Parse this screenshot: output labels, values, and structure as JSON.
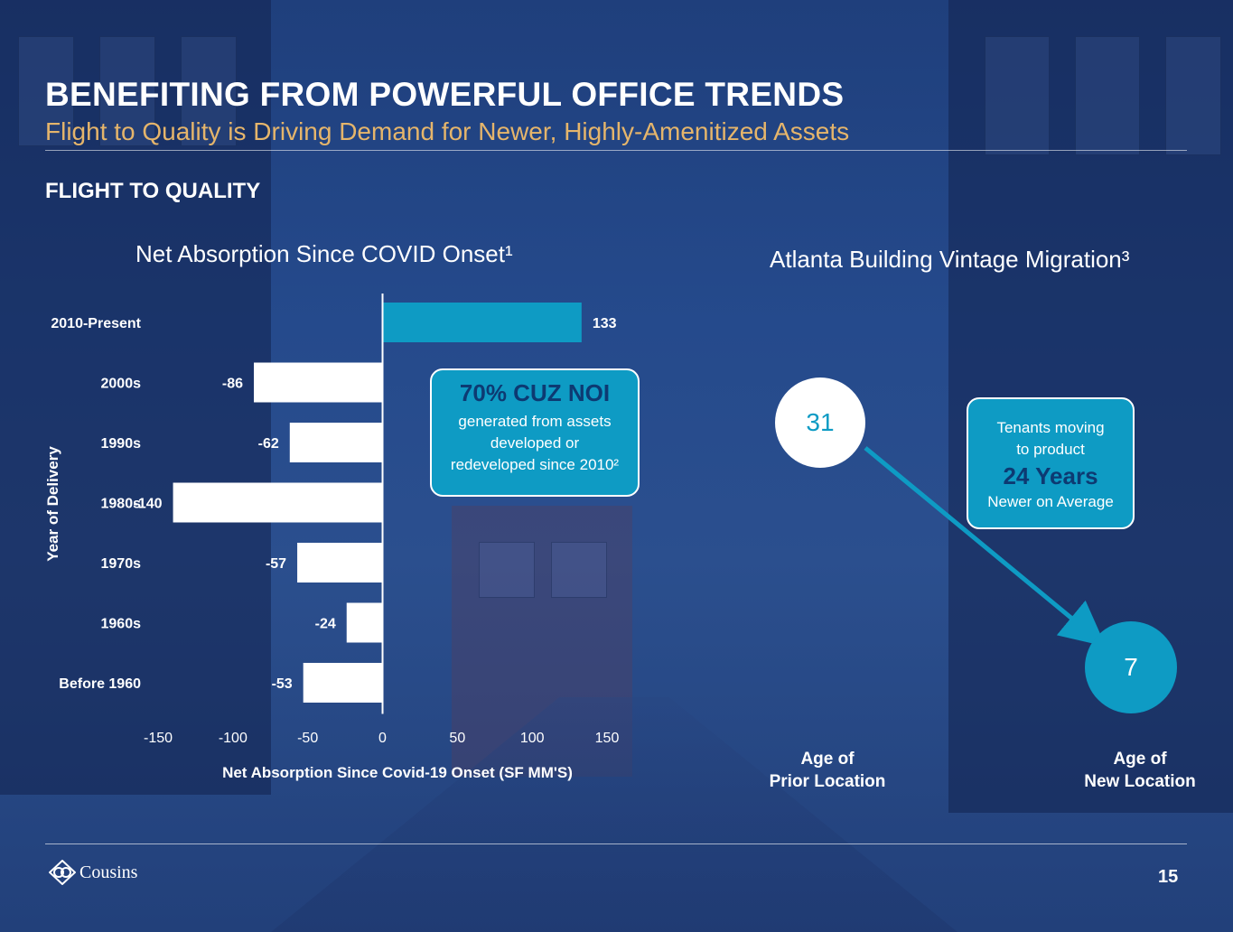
{
  "header": {
    "title": "BENEFITING FROM POWERFUL OFFICE TRENDS",
    "subtitle": "Flight to Quality is Driving Demand for Newer, Highly-Amenitized Assets",
    "section": "FLIGHT TO QUALITY"
  },
  "chart_data": [
    {
      "type": "bar",
      "orientation": "horizontal",
      "title": "Net Absorption Since COVID Onset¹",
      "xlabel": "Net Absorption Since Covid-19 Onset (SF MM'S)",
      "ylabel": "Year of Delivery",
      "categories": [
        "2010-Present",
        "2000s",
        "1990s",
        "1980s",
        "1970s",
        "1960s",
        "Before 1960"
      ],
      "values": [
        133,
        -86,
        -62,
        -140,
        -57,
        -24,
        -53
      ],
      "data_labels": [
        "133",
        "-86",
        "-62",
        "-140",
        "-57",
        "-24",
        "-53"
      ],
      "xticks": [
        "-150",
        "-100",
        "-50",
        "0",
        "50",
        "100",
        "150"
      ],
      "xlim": [
        -150,
        150
      ],
      "grid": false,
      "colors": {
        "positive": "#0e9bc4",
        "negative": "#ffffff"
      }
    }
  ],
  "callout_noi": {
    "headline": "70% CUZ NOI",
    "body": "generated from assets developed or redeveloped since 2010²"
  },
  "vintage": {
    "title": "Atlanta Building Vintage Migration³",
    "prior_age": "31",
    "new_age": "7",
    "prior_label_line1": "Age of",
    "prior_label_line2": "Prior Location",
    "new_label_line1": "Age of",
    "new_label_line2": "New Location",
    "callout_line1": "Tenants moving",
    "callout_line2": "to product",
    "callout_big": "24 Years",
    "callout_line3": "Newer on Average"
  },
  "footer": {
    "logo_text": "Cousins",
    "page_number": "15"
  },
  "colors": {
    "accent": "#0e9bc4",
    "gold": "#e5b56b",
    "navy": "#0d3a72"
  }
}
